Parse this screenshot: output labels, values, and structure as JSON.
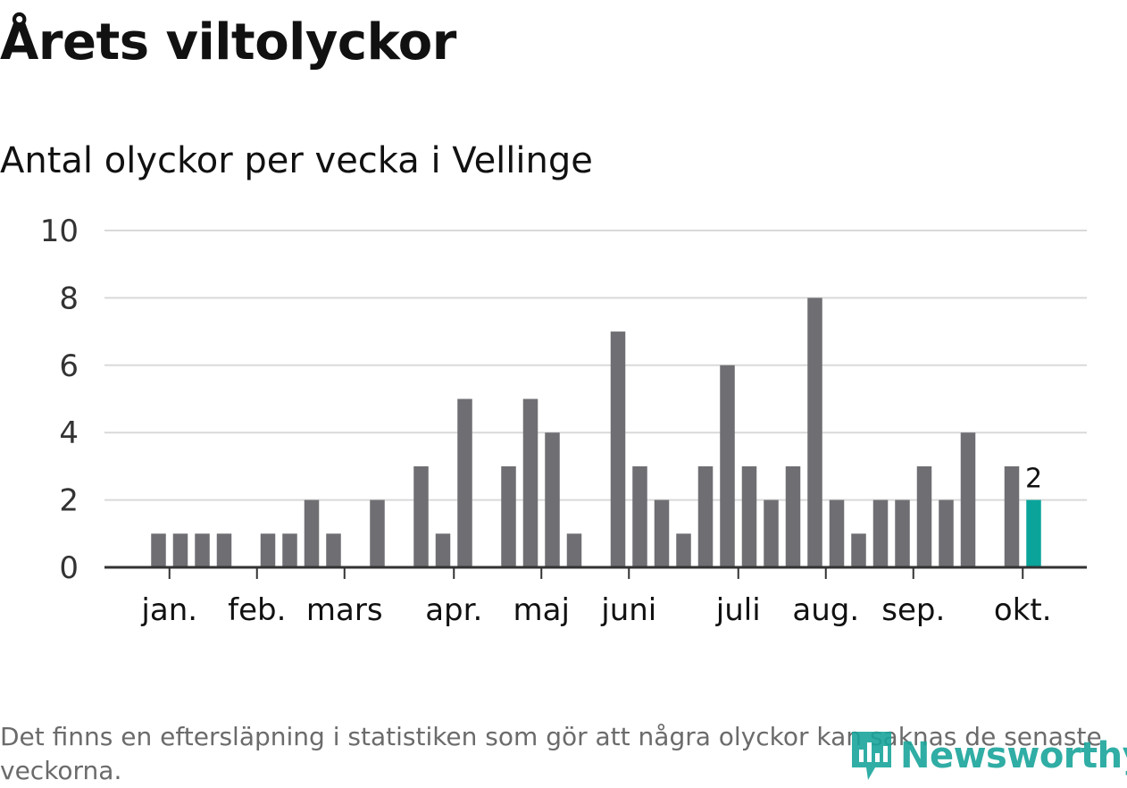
{
  "title": "Årets viltolyckor",
  "subtitle": "Antal olyckor per vecka i Vellinge",
  "note": "Det finns en eftersläpning i statistiken som gör att några olyckor kan saknas de senaste veckorna.",
  "logo": {
    "text": "Newsworthy",
    "icon": "newsworthy-logo-icon"
  },
  "colors": {
    "bar": "#6f6f73",
    "highlight": "#0aa49a",
    "grid": "#d9d9d9",
    "axis": "#333333",
    "text": "#333333"
  },
  "chart_data": {
    "type": "bar",
    "title": "Antal olyckor per vecka i Vellinge",
    "xlabel": "",
    "ylabel": "",
    "ylim": [
      0,
      10
    ],
    "yticks": [
      0,
      2,
      4,
      6,
      8,
      10
    ],
    "grid": true,
    "weeks": [
      1,
      2,
      3,
      4,
      5,
      6,
      7,
      8,
      9,
      10,
      11,
      12,
      13,
      14,
      15,
      16,
      17,
      18,
      19,
      20,
      21,
      22,
      23,
      24,
      25,
      26,
      27,
      28,
      29,
      30,
      31,
      32,
      33,
      34,
      35,
      36,
      37,
      38,
      39,
      40,
      41,
      42,
      43
    ],
    "values": [
      0,
      0,
      1,
      1,
      1,
      1,
      0,
      1,
      1,
      2,
      1,
      0,
      2,
      0,
      3,
      1,
      5,
      0,
      3,
      5,
      4,
      1,
      0,
      7,
      3,
      2,
      1,
      3,
      6,
      3,
      2,
      3,
      8,
      2,
      1,
      2,
      2,
      3,
      2,
      4,
      0,
      3,
      2
    ],
    "highlight_index": 42,
    "highlight_label": "2",
    "month_ticks": [
      {
        "label": "jan.",
        "week": 3.5
      },
      {
        "label": "feb.",
        "week": 7.5
      },
      {
        "label": "mars",
        "week": 11.5
      },
      {
        "label": "apr.",
        "week": 16.5
      },
      {
        "label": "maj",
        "week": 20.5
      },
      {
        "label": "juni",
        "week": 24.5
      },
      {
        "label": "juli",
        "week": 29.5
      },
      {
        "label": "aug.",
        "week": 33.5
      },
      {
        "label": "sep.",
        "week": 37.5
      },
      {
        "label": "okt.",
        "week": 42.5
      }
    ]
  }
}
